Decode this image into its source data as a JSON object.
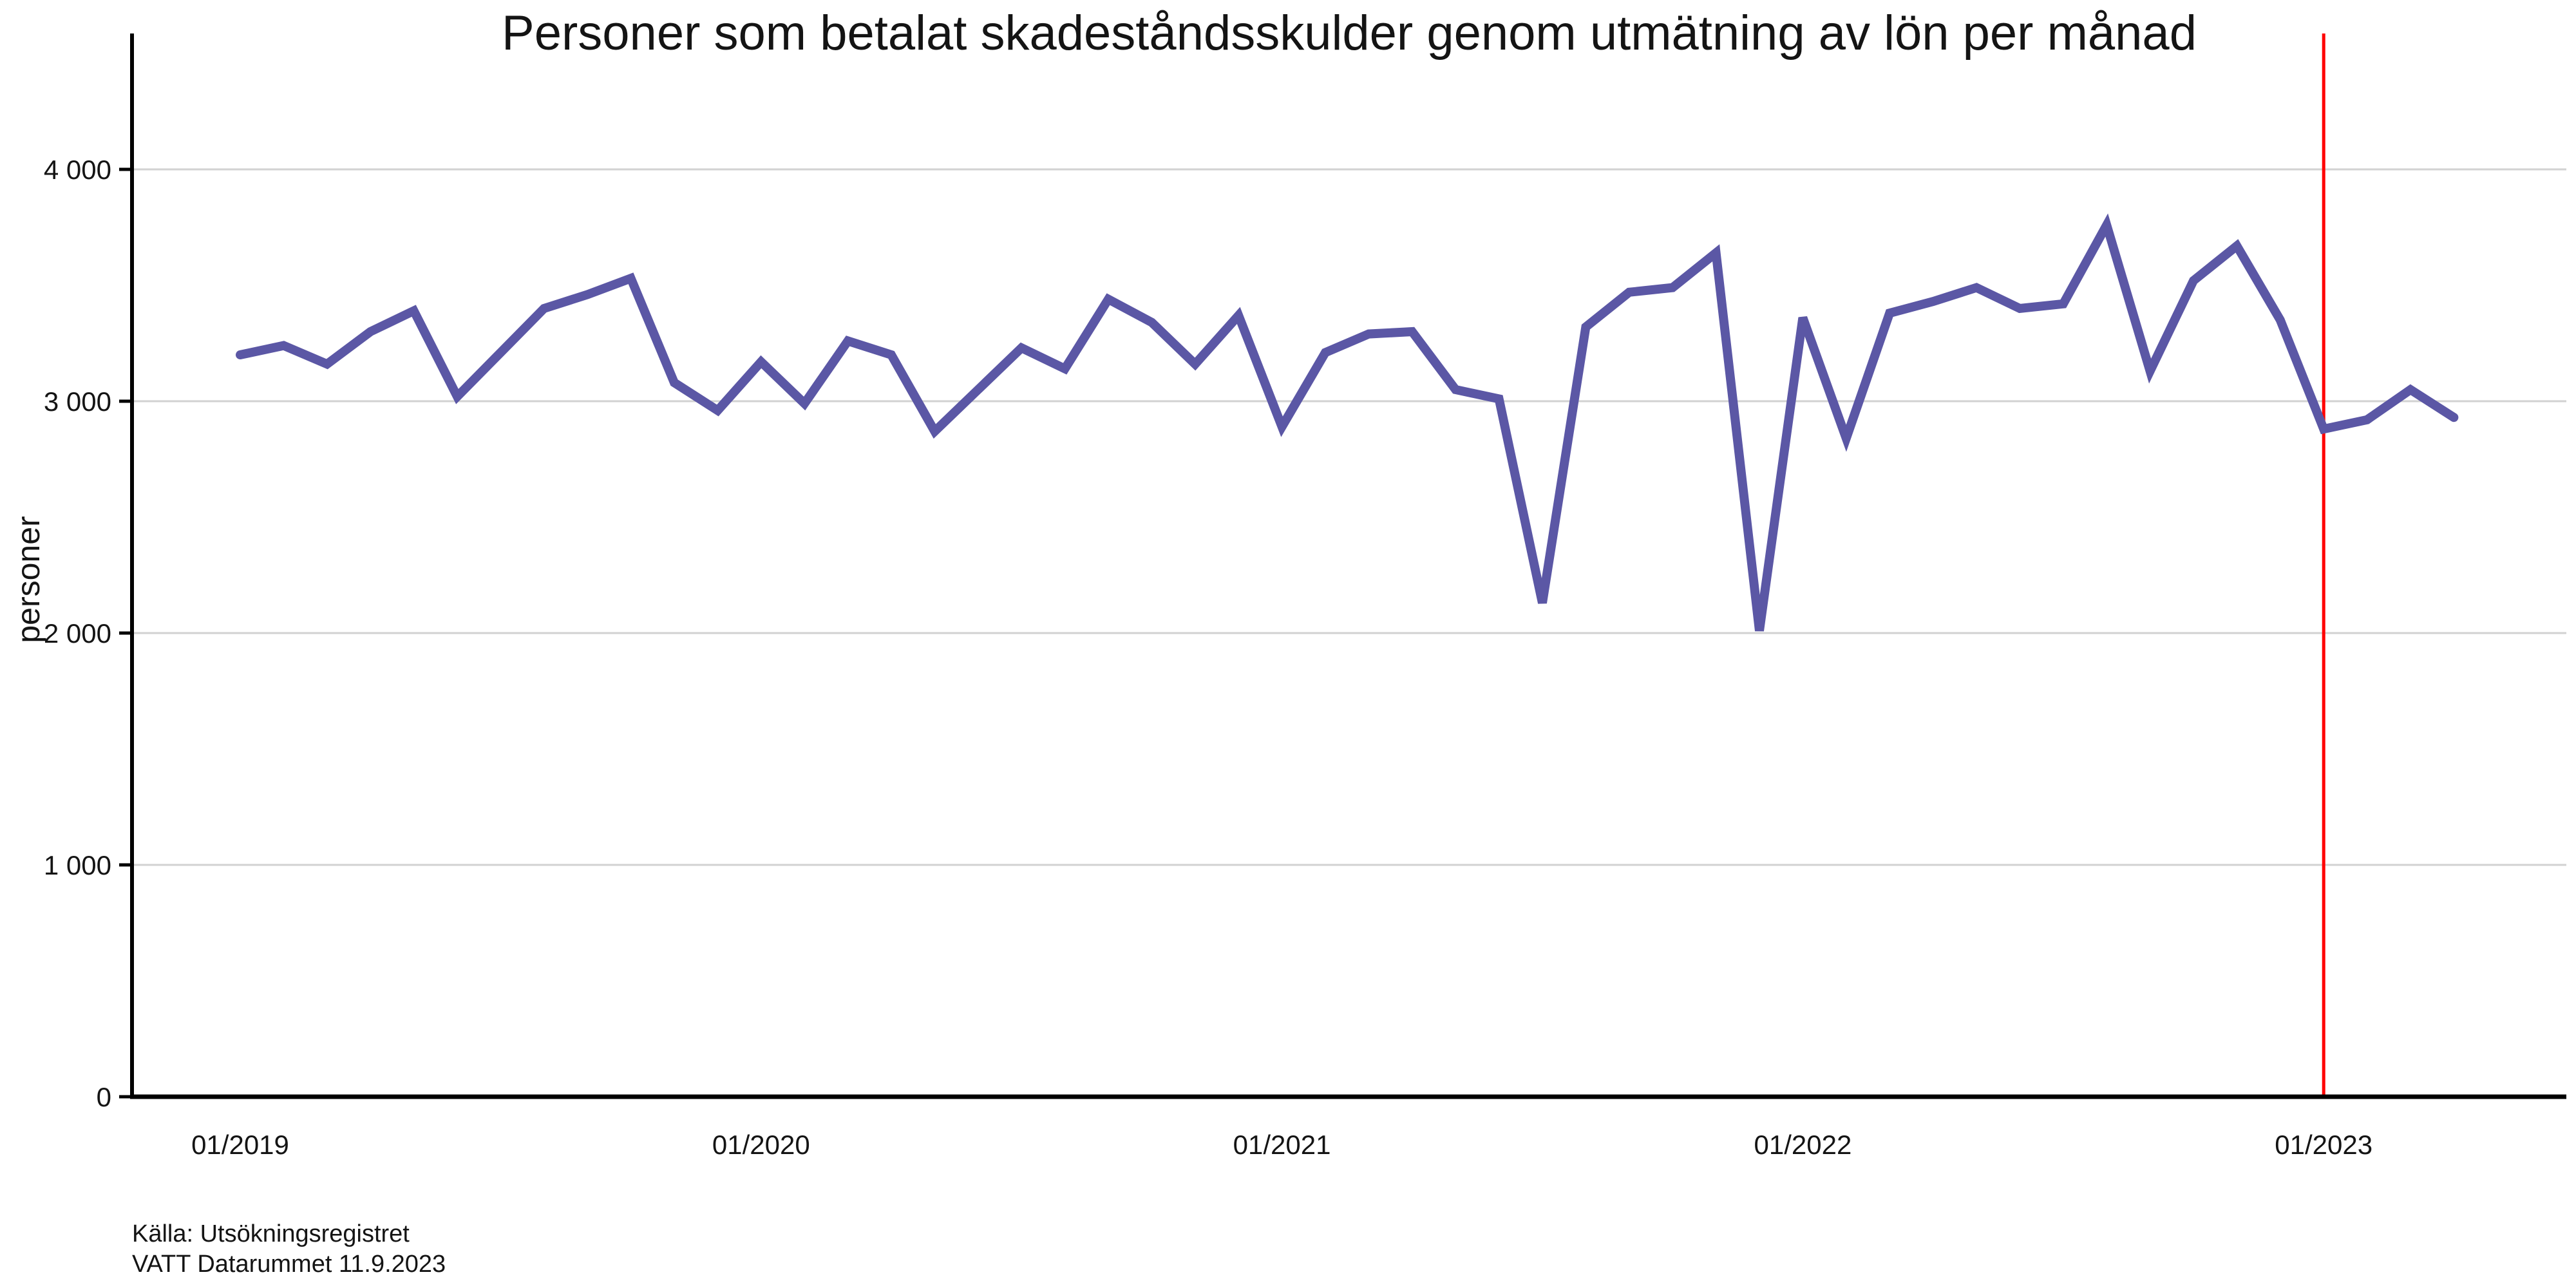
{
  "title": "Personer som betalat skadeståndsskulder genom utmätning av lön per månad",
  "y_axis": {
    "label": "personer",
    "tick_labels": [
      "0",
      "1 000",
      "2 000",
      "3 000",
      "4 000"
    ]
  },
  "x_axis": {
    "tick_labels": [
      "01/2019",
      "01/2020",
      "01/2021",
      "01/2022",
      "01/2023"
    ]
  },
  "source": {
    "line1": "Källa: Utsökningsregistret",
    "line2": "VATT Datarummet 11.9.2023"
  },
  "colors": {
    "line": "#5B57A5",
    "reference_line": "#FF0000",
    "grid": "#D2D2D2",
    "axis": "#000000",
    "text": "#141414"
  },
  "chart_data": {
    "type": "line",
    "title": "Personer som betalat skadeståndsskulder genom utmätning av lön per månad",
    "xlabel": "",
    "ylabel": "personer",
    "ylim": [
      0,
      4400
    ],
    "yticks": [
      0,
      1000,
      2000,
      3000,
      4000
    ],
    "xticks": [
      "01/2019",
      "01/2020",
      "01/2021",
      "01/2022",
      "01/2023"
    ],
    "grid": "horizontal",
    "legend": "none",
    "vline_x": "01/2023",
    "x": [
      "01/2019",
      "02/2019",
      "03/2019",
      "04/2019",
      "05/2019",
      "06/2019",
      "07/2019",
      "08/2019",
      "09/2019",
      "10/2019",
      "11/2019",
      "12/2019",
      "01/2020",
      "02/2020",
      "03/2020",
      "04/2020",
      "05/2020",
      "06/2020",
      "07/2020",
      "08/2020",
      "09/2020",
      "10/2020",
      "11/2020",
      "12/2020",
      "01/2021",
      "02/2021",
      "03/2021",
      "04/2021",
      "05/2021",
      "06/2021",
      "07/2021",
      "08/2021",
      "09/2021",
      "10/2021",
      "11/2021",
      "12/2021",
      "01/2022",
      "02/2022",
      "03/2022",
      "04/2022",
      "05/2022",
      "06/2022",
      "07/2022",
      "08/2022",
      "09/2022",
      "10/2022",
      "11/2022",
      "12/2022",
      "01/2023",
      "02/2023",
      "03/2023",
      "04/2023"
    ],
    "values": [
      3200,
      3240,
      3160,
      3300,
      3390,
      3020,
      3210,
      3400,
      3460,
      3530,
      3080,
      2960,
      3170,
      2990,
      3260,
      3200,
      2870,
      3050,
      3230,
      3140,
      3440,
      3340,
      3160,
      3370,
      2890,
      3210,
      3290,
      3300,
      3050,
      3010,
      2130,
      3320,
      3470,
      3490,
      3640,
      2010,
      3360,
      2840,
      3380,
      3430,
      3490,
      3400,
      3420,
      3760,
      3130,
      3520,
      3670,
      3350,
      2880,
      2920,
      3050,
      2930
    ],
    "series_name": "personer"
  }
}
